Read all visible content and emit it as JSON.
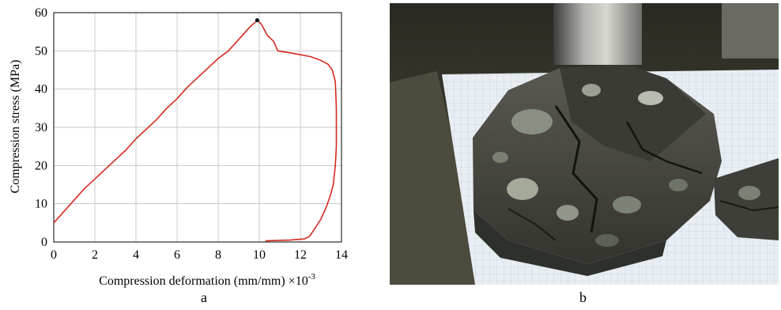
{
  "chart_data": {
    "type": "line",
    "title": "",
    "xlabel": "Compression deformation (mm/mm) ×10",
    "xlabel_exponent": "-3",
    "ylabel": "Compression stress (MPa)",
    "xlim": [
      0,
      14
    ],
    "ylim": [
      0,
      60
    ],
    "xticks": [
      0,
      2,
      4,
      6,
      8,
      10,
      12,
      14
    ],
    "yticks": [
      0,
      10,
      20,
      30,
      40,
      50,
      60
    ],
    "grid": true,
    "series_color": "#d42a20",
    "series": [
      {
        "x": [
          0.0,
          0.5,
          1.0,
          1.5,
          2.0,
          2.5,
          3.0,
          3.5,
          4.0,
          4.5,
          5.0,
          5.5,
          6.0,
          6.5,
          7.0,
          7.5,
          8.0,
          8.5,
          9.0,
          9.5,
          9.9,
          10.1,
          10.4,
          10.7,
          10.9,
          11.5,
          12.0,
          12.5,
          13.0,
          13.35,
          13.55,
          13.7,
          13.75,
          13.75,
          13.7,
          13.6,
          13.45,
          13.25,
          13.0,
          12.7,
          12.45,
          12.2,
          11.5,
          10.8,
          10.3
        ],
        "y": [
          5.0,
          8.0,
          11.0,
          14.0,
          16.5,
          19.0,
          21.5,
          24.0,
          27.0,
          29.5,
          32.0,
          35.0,
          37.5,
          40.5,
          43.0,
          45.5,
          48.0,
          50.0,
          53.0,
          56.0,
          58.0,
          57.0,
          54.0,
          52.5,
          50.0,
          49.5,
          49.0,
          48.5,
          47.5,
          46.5,
          45.0,
          42.0,
          35.0,
          25.0,
          20.0,
          15.0,
          12.0,
          9.0,
          6.0,
          3.5,
          1.5,
          0.8,
          0.5,
          0.4,
          0.3
        ]
      }
    ],
    "peak": {
      "x": 9.9,
      "y": 58.0
    }
  },
  "panel_labels": {
    "left": "a",
    "right": "b"
  }
}
